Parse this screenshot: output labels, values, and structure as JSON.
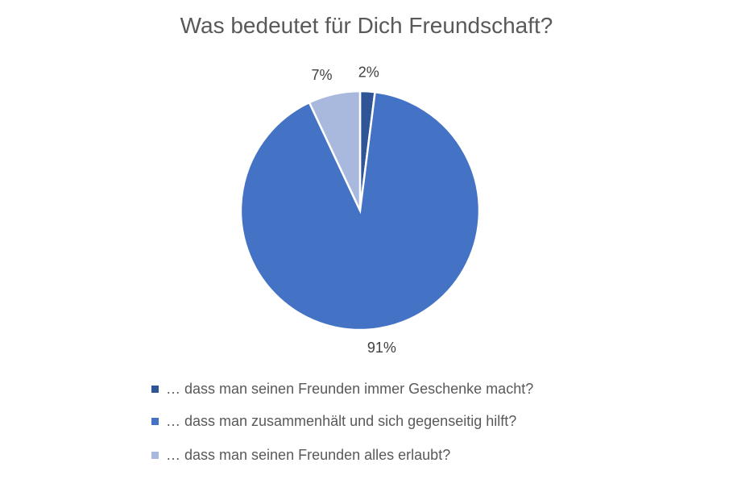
{
  "chart_data": {
    "type": "pie",
    "title": "Was bedeutet für Dich Freundschaft?",
    "categories": [
      "… dass man seinen Freunden immer Geschenke macht?",
      "… dass man zusammenhält und sich gegenseitig hilft?",
      "… dass man seinen Freunden alles erlaubt?"
    ],
    "values": [
      2,
      91,
      7
    ],
    "data_labels": [
      "2%",
      "91%",
      "7%"
    ],
    "colors": [
      "#2F5597",
      "#4472C4",
      "#A9B9DD"
    ],
    "legend_position": "bottom"
  }
}
